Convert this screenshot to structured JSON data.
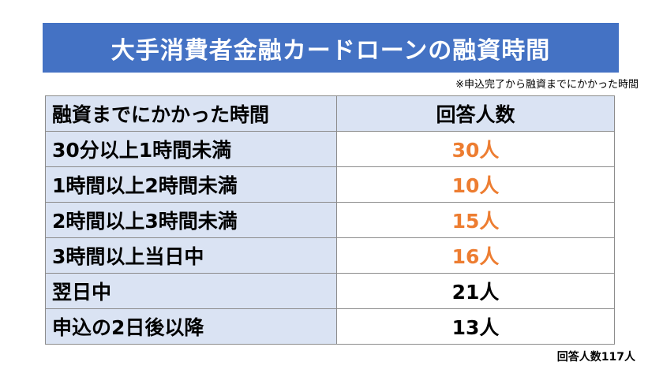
{
  "title": "大手消費者金融カードローンの融資時間",
  "note": "※申込完了から融資までにかかった時間",
  "table": {
    "headers": [
      "融資までにかかった時間",
      "回答人数"
    ],
    "rows": [
      {
        "label": "30分以上1時間未満",
        "count": "30人",
        "highlight": true
      },
      {
        "label": "1時間以上2時間未満",
        "count": "10人",
        "highlight": true
      },
      {
        "label": "2時間以上3時間未満",
        "count": "15人",
        "highlight": true
      },
      {
        "label": "3時間以上当日中",
        "count": "16人",
        "highlight": true
      },
      {
        "label": "翌日中",
        "count": "21人",
        "highlight": false
      },
      {
        "label": "申込の2日後以降",
        "count": "13人",
        "highlight": false
      }
    ]
  },
  "total": "回答人数117人",
  "colors": {
    "banner": "#4472c4",
    "label_fill": "#dae3f3",
    "highlight_text": "#ed7d31"
  }
}
